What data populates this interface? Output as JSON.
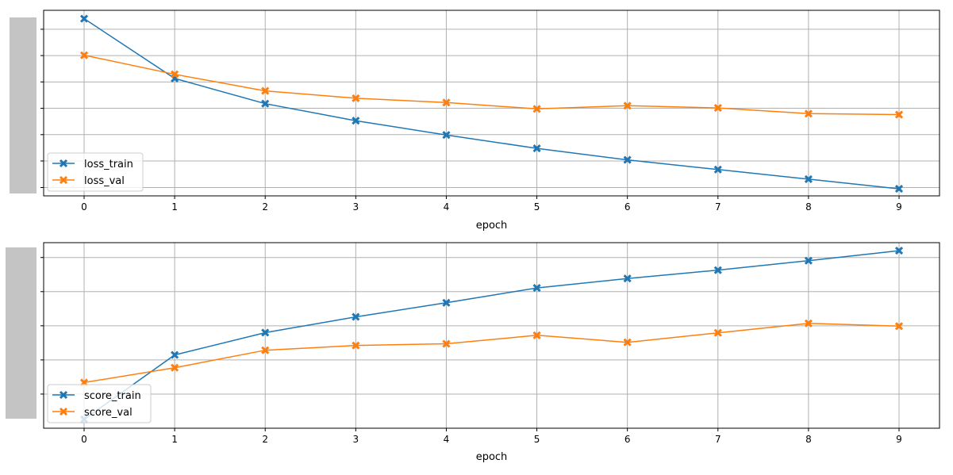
{
  "chart_data": [
    {
      "type": "line",
      "xlabel": "epoch",
      "ylabel": "",
      "x": [
        0,
        1,
        2,
        3,
        4,
        5,
        6,
        7,
        8,
        9
      ],
      "ylim": [
        0,
        1
      ],
      "grid": true,
      "legend_position": "lower-left",
      "y_tick_values": [
        0.045,
        0.188,
        0.33,
        0.472,
        0.614,
        0.756,
        0.898
      ],
      "series": [
        {
          "name": "loss_train",
          "color": "#1f77b4",
          "marker": "x-filled",
          "values": [
            0.955,
            0.633,
            0.497,
            0.405,
            0.328,
            0.256,
            0.194,
            0.142,
            0.09,
            0.038
          ]
        },
        {
          "name": "loss_val",
          "color": "#ff7f0e",
          "marker": "x-filled",
          "values": [
            0.758,
            0.655,
            0.566,
            0.526,
            0.503,
            0.469,
            0.486,
            0.474,
            0.443,
            0.438
          ]
        }
      ]
    },
    {
      "type": "line",
      "xlabel": "epoch",
      "ylabel": "",
      "x": [
        0,
        1,
        2,
        3,
        4,
        5,
        6,
        7,
        8,
        9
      ],
      "ylim": [
        0,
        1
      ],
      "grid": true,
      "legend_position": "lower-left",
      "y_tick_values": [
        0.184,
        0.368,
        0.552,
        0.736,
        0.92
      ],
      "series": [
        {
          "name": "score_train",
          "color": "#1f77b4",
          "marker": "x-filled",
          "values": [
            0.048,
            0.395,
            0.515,
            0.6,
            0.676,
            0.756,
            0.807,
            0.852,
            0.903,
            0.957
          ]
        },
        {
          "name": "score_val",
          "color": "#ff7f0e",
          "marker": "x-filled",
          "values": [
            0.246,
            0.326,
            0.42,
            0.446,
            0.455,
            0.501,
            0.463,
            0.514,
            0.565,
            0.55
          ]
        }
      ]
    }
  ]
}
